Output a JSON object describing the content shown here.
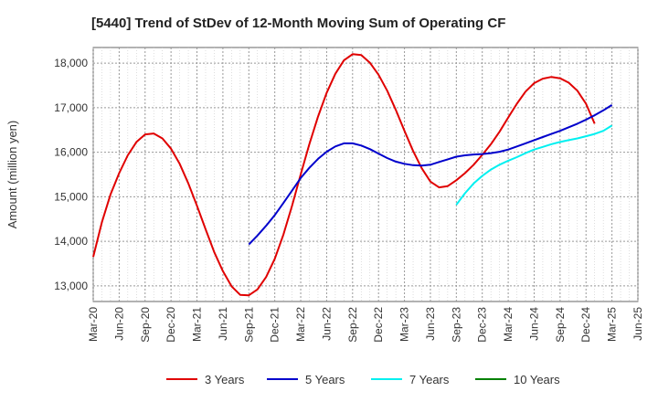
{
  "chart_data": {
    "type": "line",
    "title": "[5440]  Trend of StDev of 12-Month Moving Sum of Operating CF",
    "xlabel": "",
    "ylabel": "Amount (million yen)",
    "ylim": [
      12650,
      18350
    ],
    "yticks": [
      13000,
      14000,
      15000,
      16000,
      17000,
      18000
    ],
    "ytick_labels": [
      "13,000",
      "14,000",
      "15,000",
      "16,000",
      "17,000",
      "18,000"
    ],
    "x_ticks": [
      "Mar-20",
      "Jun-20",
      "Sep-20",
      "Dec-20",
      "Mar-21",
      "Jun-21",
      "Sep-21",
      "Dec-21",
      "Mar-22",
      "Jun-22",
      "Sep-22",
      "Dec-22",
      "Mar-23",
      "Jun-23",
      "Sep-23",
      "Dec-23",
      "Mar-24",
      "Jun-24",
      "Sep-24",
      "Dec-24",
      "Mar-25",
      "Jun-25"
    ],
    "x_note": "x values are month offsets from Mar-20 (0 = Mar-20, 3 = Jun-20, ...)",
    "grid": true,
    "legend_position": "bottom",
    "series": [
      {
        "name": "3 Years",
        "color": "#e00000",
        "x": [
          0,
          1,
          2,
          3,
          4,
          5,
          6,
          7,
          8,
          9,
          10,
          11,
          12,
          13,
          14,
          15,
          16,
          17,
          18,
          19,
          20,
          21,
          22,
          23,
          24,
          25,
          26,
          27,
          28,
          29,
          30,
          31,
          32,
          33,
          34,
          35,
          36,
          37,
          38,
          39,
          40,
          41,
          42,
          43,
          44,
          45,
          46,
          47,
          48,
          49,
          50,
          51,
          52,
          53,
          54,
          55,
          56,
          57,
          58,
          59,
          60
        ],
        "values": [
          13650,
          14430,
          15050,
          15530,
          15930,
          16230,
          16400,
          16420,
          16310,
          16080,
          15740,
          15300,
          14800,
          14270,
          13760,
          13330,
          12990,
          12800,
          12790,
          12920,
          13200,
          13610,
          14150,
          14800,
          15500,
          16180,
          16800,
          17330,
          17760,
          18060,
          18200,
          18180,
          18010,
          17740,
          17380,
          16950,
          16480,
          16030,
          15640,
          15340,
          15210,
          15240,
          15370,
          15530,
          15720,
          15940,
          16180,
          16460,
          16780,
          17090,
          17360,
          17550,
          17650,
          17690,
          17660,
          17560,
          17380,
          17090,
          16640,
          null,
          null
        ]
      },
      {
        "name": "5 Years",
        "color": "#0000cc",
        "x": [
          18,
          19,
          20,
          21,
          22,
          23,
          24,
          25,
          26,
          27,
          28,
          29,
          30,
          31,
          32,
          33,
          34,
          35,
          36,
          37,
          38,
          39,
          40,
          41,
          42,
          43,
          44,
          45,
          46,
          47,
          48,
          49,
          50,
          51,
          52,
          53,
          54,
          55,
          56,
          57,
          58,
          59,
          60
        ],
        "values": [
          13930,
          14130,
          14350,
          14590,
          14860,
          15140,
          15420,
          15650,
          15850,
          16010,
          16130,
          16200,
          16200,
          16150,
          16070,
          15970,
          15870,
          15790,
          15740,
          15710,
          15700,
          15720,
          15780,
          15840,
          15900,
          15930,
          15950,
          15960,
          15980,
          16010,
          16060,
          16130,
          16200,
          16270,
          16340,
          16410,
          16480,
          16560,
          16640,
          16730,
          16830,
          16940,
          17060
        ]
      },
      {
        "name": "7 Years",
        "color": "#00f0f0",
        "x": [
          42,
          43,
          44,
          45,
          46,
          47,
          48,
          49,
          50,
          51,
          52,
          53,
          54,
          55,
          56,
          57,
          58,
          59,
          60
        ],
        "values": [
          14820,
          15080,
          15300,
          15470,
          15610,
          15720,
          15810,
          15890,
          15980,
          16060,
          16120,
          16180,
          16230,
          16270,
          16310,
          16360,
          16410,
          16480,
          16600
        ]
      },
      {
        "name": "10 Years",
        "color": "#008000",
        "x": [],
        "values": []
      }
    ]
  }
}
